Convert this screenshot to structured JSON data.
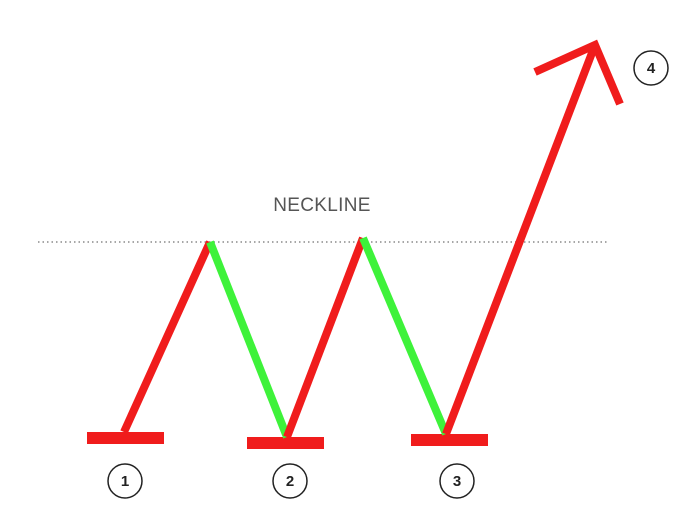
{
  "colors": {
    "rise": "#f01c1c",
    "fall": "#3ef23a",
    "neckline": "#8a8a8a",
    "label": "#555555",
    "marker_stroke": "#222222",
    "background": "#ffffff"
  },
  "neckline": {
    "label": "NECKLINE",
    "style": "dotted"
  },
  "markers": [
    {
      "label": "1"
    },
    {
      "label": "2"
    },
    {
      "label": "3"
    },
    {
      "label": "4"
    }
  ],
  "legs": [
    {
      "from": "bottom-1",
      "to": "peak-1",
      "direction": "up",
      "color": "rise"
    },
    {
      "from": "peak-1",
      "to": "bottom-2",
      "direction": "down",
      "color": "fall"
    },
    {
      "from": "bottom-2",
      "to": "peak-2",
      "direction": "up",
      "color": "rise"
    },
    {
      "from": "peak-2",
      "to": "bottom-3",
      "direction": "down",
      "color": "fall"
    },
    {
      "from": "bottom-3",
      "to": "breakout",
      "direction": "up",
      "color": "rise"
    }
  ]
}
